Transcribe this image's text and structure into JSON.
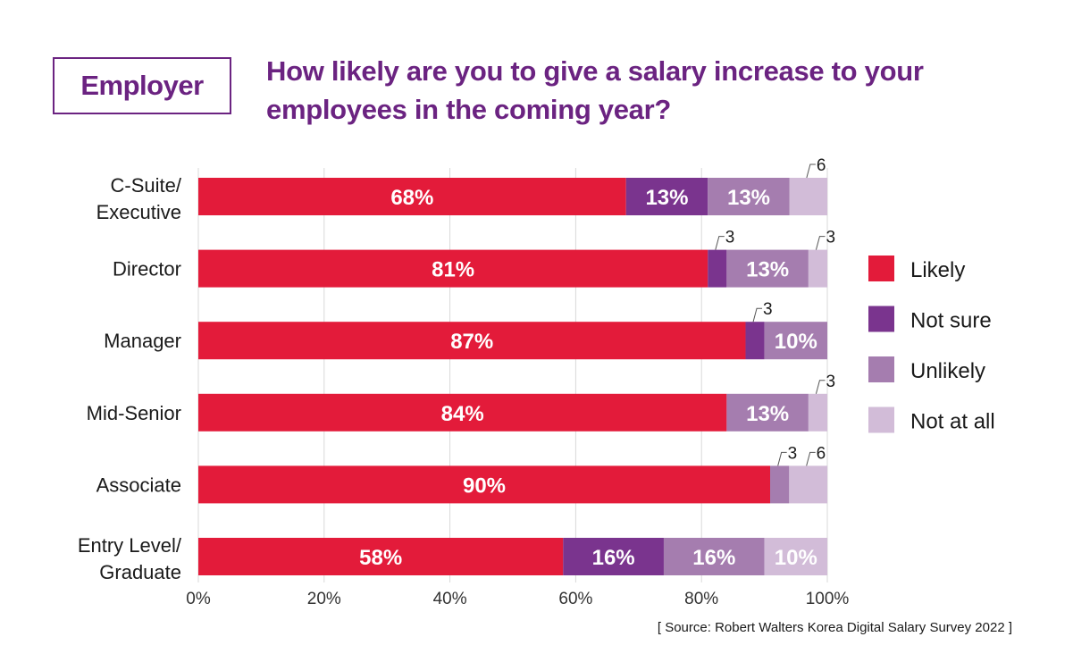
{
  "badge": "Employer",
  "title_lines": [
    "How likely are you to give a salary increase to your",
    "employees in the coming year?"
  ],
  "source": "[ Source: Robert Walters Korea Digital Salary Survey 2022 ]",
  "chart_data": {
    "type": "bar",
    "orientation": "horizontal",
    "stacked": true,
    "normalized": true,
    "title": "How likely are you to give a salary increase to your employees in the coming year?",
    "xlabel": "",
    "ylabel": "",
    "xlim": [
      0,
      100
    ],
    "x_ticks": [
      "0%",
      "20%",
      "40%",
      "60%",
      "80%",
      "100%"
    ],
    "grid": true,
    "legend_position": "right",
    "categories": [
      [
        "C-Suite/",
        "Executive"
      ],
      [
        "Director"
      ],
      [
        "Manager"
      ],
      [
        "Mid-Senior"
      ],
      [
        "Associate"
      ],
      [
        "Entry Level/",
        "Graduate"
      ]
    ],
    "series": [
      {
        "name": "Likely",
        "color": "#e31b3a",
        "values": [
          68,
          81,
          87,
          84,
          90,
          58
        ]
      },
      {
        "name": "Not sure",
        "color": "#7a348e",
        "values": [
          13,
          3,
          3,
          0,
          0,
          16
        ]
      },
      {
        "name": "Unlikely",
        "color": "#a57daf",
        "values": [
          13,
          13,
          10,
          13,
          3,
          16
        ]
      },
      {
        "name": "Not at all",
        "color": "#d2bcd8",
        "values": [
          6,
          3,
          0,
          3,
          6,
          10
        ]
      }
    ]
  }
}
